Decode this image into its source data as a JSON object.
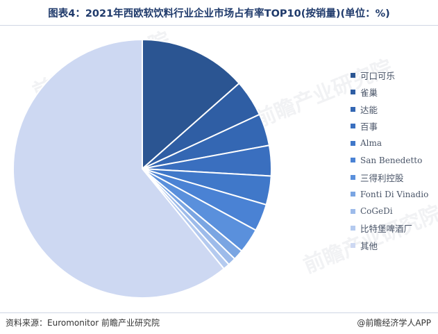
{
  "title": "图表4：2021年西欧软饮料行业企业市场占有率TOP10(按销量)(单位：%)",
  "source": "资料来源：Euromonitor 前瞻产业研究院",
  "credit": "@前瞻经济学人APP",
  "watermark": "前瞻产业研究院",
  "chart_data": {
    "type": "pie",
    "title": "图表4：2021年西欧软饮料行业企业市场占有率TOP10(按销量)(单位：%)",
    "legend_position": "right",
    "start_angle_deg": 0,
    "direction": "clockwise",
    "slices": [
      {
        "label": "可口可乐",
        "value": 13.5,
        "color": "#2b5592"
      },
      {
        "label": "雀巢",
        "value": 4.6,
        "color": "#2f5ea4"
      },
      {
        "label": "达能",
        "value": 4.0,
        "color": "#3467b3"
      },
      {
        "label": "百事",
        "value": 3.8,
        "color": "#3a6fbf"
      },
      {
        "label": "Alma",
        "value": 3.6,
        "color": "#4078c9"
      },
      {
        "label": "San Benedetto",
        "value": 3.4,
        "color": "#4a82d4"
      },
      {
        "label": "三得利控股",
        "value": 3.1,
        "color": "#5a90dc"
      },
      {
        "label": "Fonti Di Vinadio",
        "value": 1.3,
        "color": "#7aa5e2"
      },
      {
        "label": "CoGeDi",
        "value": 1.0,
        "color": "#9dbbea"
      },
      {
        "label": "比特堡啤酒厂",
        "value": 0.8,
        "color": "#b4caef"
      },
      {
        "label": "其他",
        "value": 60.9,
        "color": "#cdd8f2"
      }
    ]
  }
}
